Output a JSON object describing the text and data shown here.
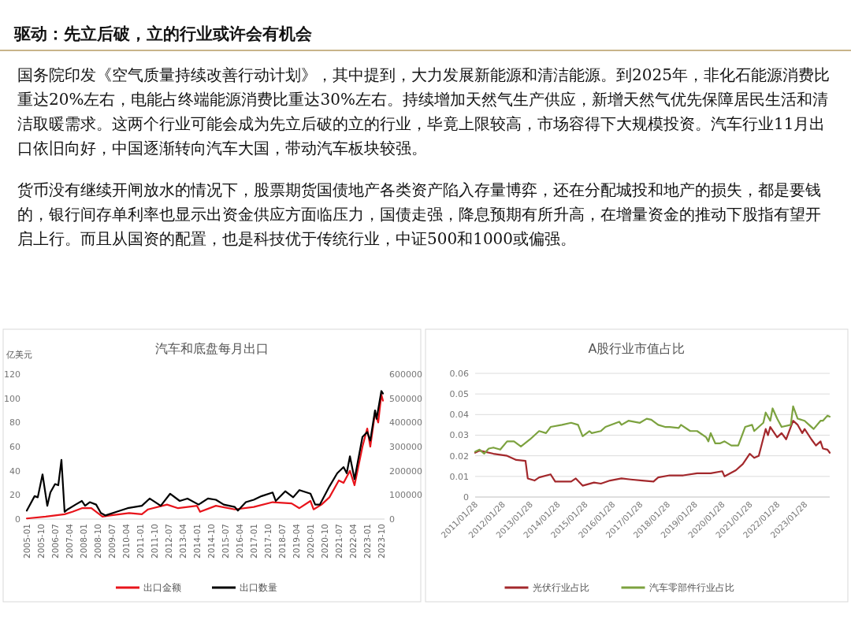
{
  "chart_data": [
    {
      "type": "other",
      "title": "驱动：先立后破，立的行业或许会有机会",
      "annotations": [
        "国务院印发《空气质量持续改善行动计划》，其中提到，大力发展新能源和清洁能源。到2025年，非化石能源消费比重达20%左右，电能占终端能源消费比重达30%左右。持续增加天然气生产供应，新增天然气优先保障居民生活和清洁取暖需求。这两个行业可能会成为先立后破的立的行业，毕竟上限较高，市场容得下大规模投资。汽车行业11月出口依旧向好，中国逐渐转向汽车大国，带动汽车板块较强。",
        "货币没有继续开闸放水的情况下，股票期货国债地产各类资产陷入存量博弈，还在分配城投和地产的损失，都是要钱的，银行间存单利率也显示出资金供应方面临压力，国债走强，降息预期有所升高，在增量资金的推动下股指有望开启上行。而且从国资的配置，也是科技优于传统行业，中证500和1000或偏强。"
      ]
    },
    {
      "type": "line",
      "title": "汽车和底盘每月出口",
      "ylabel": "亿美元",
      "xlim": [
        "2005-01",
        "2023-12"
      ],
      "xticks": [
        "2005-01",
        "2005-10",
        "2006-07",
        "2007-04",
        "2008-01",
        "2008-10",
        "2009-07",
        "2010-04",
        "2011-01",
        "2011-10",
        "2012-07",
        "2013-04",
        "2014-01",
        "2014-10",
        "2015-07",
        "2016-04",
        "2017-01",
        "2017-10",
        "2018-07",
        "2019-04",
        "2020-01",
        "2020-10",
        "2021-07",
        "2022-04",
        "2023-01",
        "2023-10"
      ],
      "ylim": [
        0,
        120
      ],
      "yticks": [
        0,
        20,
        40,
        60,
        80,
        100,
        120
      ],
      "y2lim": [
        0,
        600000
      ],
      "y2ticks": [
        0,
        100000,
        200000,
        300000,
        400000,
        500000,
        600000
      ],
      "grid": false,
      "legend": "bottom",
      "series": [
        {
          "name": "出口金额",
          "color": "#e8141b",
          "x": [
            "2005-01",
            "2006-01",
            "2007-01",
            "2007-06",
            "2007-12",
            "2008-06",
            "2009-01",
            "2009-06",
            "2010-06",
            "2011-02",
            "2011-06",
            "2012-06",
            "2013-01",
            "2014-01",
            "2014-03",
            "2015-01",
            "2016-01",
            "2017-01",
            "2018-01",
            "2019-01",
            "2019-06",
            "2020-01",
            "2020-03",
            "2020-08",
            "2021-01",
            "2021-07",
            "2021-10",
            "2022-02",
            "2022-05",
            "2022-10",
            "2023-01",
            "2023-03",
            "2023-06",
            "2023-08",
            "2023-10",
            "2023-11"
          ],
          "values": [
            0.5,
            2,
            4,
            6,
            9,
            9,
            2,
            3,
            5,
            4,
            8,
            12,
            9,
            11,
            6,
            11,
            8,
            10,
            14,
            13,
            9,
            15,
            8,
            12,
            18,
            32,
            30,
            40,
            28,
            60,
            75,
            60,
            88,
            80,
            103,
            98
          ]
        },
        {
          "name": "出口数量",
          "color": "#000000",
          "axis": "y2",
          "x": [
            "2005-01",
            "2005-06",
            "2005-08",
            "2005-11",
            "2006-02",
            "2006-04",
            "2006-07",
            "2006-09",
            "2006-11",
            "2007-01",
            "2007-03",
            "2007-08",
            "2007-12",
            "2008-02",
            "2008-05",
            "2008-09",
            "2008-12",
            "2009-03",
            "2009-10",
            "2010-05",
            "2011-02",
            "2011-07",
            "2012-02",
            "2012-08",
            "2013-02",
            "2013-07",
            "2014-02",
            "2014-08",
            "2015-01",
            "2015-06",
            "2016-01",
            "2016-03",
            "2016-08",
            "2017-01",
            "2017-06",
            "2018-01",
            "2018-03",
            "2018-09",
            "2019-02",
            "2019-06",
            "2020-01",
            "2020-04",
            "2020-07",
            "2021-01",
            "2021-06",
            "2021-10",
            "2021-12",
            "2022-02",
            "2022-05",
            "2022-10",
            "2023-01",
            "2023-03",
            "2023-06",
            "2023-07",
            "2023-10",
            "2023-11"
          ],
          "values": [
            35000,
            95000,
            90000,
            185000,
            55000,
            110000,
            145000,
            140000,
            245000,
            30000,
            40000,
            60000,
            75000,
            55000,
            70000,
            60000,
            25000,
            15000,
            30000,
            45000,
            55000,
            85000,
            55000,
            105000,
            75000,
            85000,
            60000,
            85000,
            80000,
            60000,
            50000,
            35000,
            70000,
            80000,
            95000,
            110000,
            75000,
            115000,
            90000,
            120000,
            105000,
            60000,
            60000,
            135000,
            190000,
            215000,
            190000,
            260000,
            165000,
            340000,
            360000,
            325000,
            450000,
            415000,
            530000,
            520000
          ]
        }
      ]
    },
    {
      "type": "line",
      "title": "A股行业市值占比",
      "xlim": [
        "2011-01-28",
        "2023-12-28"
      ],
      "xticks": [
        {
          "value": "2011-01-28",
          "label": "2011/01/28"
        },
        {
          "value": "2012-01-28",
          "label": "2012/01/28"
        },
        {
          "value": "2013-01-28",
          "label": "2013/01/28"
        },
        {
          "value": "2014-01-28",
          "label": "2014/01/28"
        },
        {
          "value": "2015-01-28",
          "label": "2015/01/28"
        },
        {
          "value": "2016-01-28",
          "label": "2016/01/28"
        },
        {
          "value": "2017-01-28",
          "label": "2017/01/28"
        },
        {
          "value": "2018-01-28",
          "label": "2018/01/28"
        },
        {
          "value": "2019-01-28",
          "label": "2019/01/28"
        },
        {
          "value": "2020-01-28",
          "label": "2020/01/28"
        },
        {
          "value": "2021-01-28",
          "label": "2021/01/28"
        },
        {
          "value": "2022-01-28",
          "label": "2022/01/28"
        },
        {
          "value": "2023-01-28",
          "label": "2023/01/28"
        }
      ],
      "ylim": [
        0,
        0.06
      ],
      "yticks": [
        0,
        0.01,
        0.02,
        0.03,
        0.04,
        0.05,
        0.06
      ],
      "grid": "y",
      "legend": "bottom",
      "series": [
        {
          "name": "光伏行业占比",
          "color": "#a3282c",
          "x": [
            "2011-01-28",
            "2011-03-28",
            "2011-09-28",
            "2012-03-28",
            "2012-07-28",
            "2012-11-28",
            "2012-12-28",
            "2013-03-28",
            "2013-05-28",
            "2013-10-28",
            "2013-12-28",
            "2014-07-28",
            "2014-09-28",
            "2014-12-28",
            "2015-05-28",
            "2015-08-28",
            "2015-12-28",
            "2016-05-28",
            "2016-09-28",
            "2017-02-28",
            "2017-07-28",
            "2017-09-28",
            "2018-02-28",
            "2018-08-28",
            "2019-02-28",
            "2019-08-28",
            "2020-01-28",
            "2020-02-28",
            "2020-07-28",
            "2020-10-28",
            "2021-01-28",
            "2021-03-28",
            "2021-05-28",
            "2021-08-28",
            "2021-09-28",
            "2021-10-28",
            "2022-01-28",
            "2022-03-28",
            "2022-05-28",
            "2022-08-28",
            "2022-10-28",
            "2022-12-28",
            "2023-01-28",
            "2023-04-28",
            "2023-06-28",
            "2023-08-28",
            "2023-09-28",
            "2023-11-28",
            "2023-12-28"
          ],
          "values": [
            0.0215,
            0.0225,
            0.021,
            0.02,
            0.018,
            0.0175,
            0.009,
            0.008,
            0.0095,
            0.011,
            0.0075,
            0.0075,
            0.009,
            0.0055,
            0.007,
            0.0065,
            0.008,
            0.009,
            0.0085,
            0.008,
            0.0075,
            0.0095,
            0.0105,
            0.0105,
            0.0115,
            0.0115,
            0.0125,
            0.01,
            0.013,
            0.016,
            0.021,
            0.019,
            0.02,
            0.033,
            0.03,
            0.034,
            0.029,
            0.031,
            0.028,
            0.037,
            0.035,
            0.031,
            0.033,
            0.028,
            0.025,
            0.027,
            0.0235,
            0.023,
            0.0215
          ]
        },
        {
          "name": "汽车零部件行业占比",
          "color": "#7ca23f",
          "x": [
            "2011-01-28",
            "2011-03-28",
            "2011-05-28",
            "2011-07-28",
            "2011-09-28",
            "2011-12-28",
            "2012-03-28",
            "2012-06-28",
            "2012-09-28",
            "2013-01-28",
            "2013-05-28",
            "2013-08-28",
            "2013-10-28",
            "2014-03-28",
            "2014-07-28",
            "2014-10-28",
            "2014-12-28",
            "2015-03-28",
            "2015-04-28",
            "2015-08-28",
            "2015-10-28",
            "2016-04-28",
            "2016-05-28",
            "2016-08-28",
            "2017-01-28",
            "2017-04-28",
            "2017-06-28",
            "2017-09-28",
            "2017-12-28",
            "2018-02-28",
            "2018-06-28",
            "2018-07-28",
            "2018-11-28",
            "2019-02-28",
            "2019-06-28",
            "2019-07-28",
            "2019-08-28",
            "2019-10-28",
            "2019-12-28",
            "2020-02-28",
            "2020-05-28",
            "2020-08-28",
            "2020-11-28",
            "2021-02-28",
            "2021-03-28",
            "2021-07-28",
            "2021-08-28",
            "2021-10-28",
            "2021-11-28",
            "2022-01-28",
            "2022-03-28",
            "2022-07-28",
            "2022-08-28",
            "2022-10-28",
            "2023-01-28",
            "2023-03-28",
            "2023-05-28",
            "2023-08-28",
            "2023-09-28",
            "2023-11-28",
            "2023-12-28"
          ],
          "values": [
            0.022,
            0.023,
            0.021,
            0.0235,
            0.024,
            0.023,
            0.027,
            0.027,
            0.0245,
            0.028,
            0.032,
            0.031,
            0.034,
            0.035,
            0.036,
            0.035,
            0.0295,
            0.032,
            0.031,
            0.032,
            0.034,
            0.0365,
            0.035,
            0.037,
            0.036,
            0.038,
            0.0375,
            0.035,
            0.034,
            0.034,
            0.0335,
            0.035,
            0.032,
            0.032,
            0.029,
            0.027,
            0.031,
            0.026,
            0.026,
            0.027,
            0.025,
            0.025,
            0.034,
            0.035,
            0.032,
            0.036,
            0.041,
            0.037,
            0.043,
            0.038,
            0.034,
            0.035,
            0.044,
            0.038,
            0.037,
            0.035,
            0.033,
            0.037,
            0.037,
            0.0395,
            0.039
          ]
        }
      ]
    }
  ]
}
